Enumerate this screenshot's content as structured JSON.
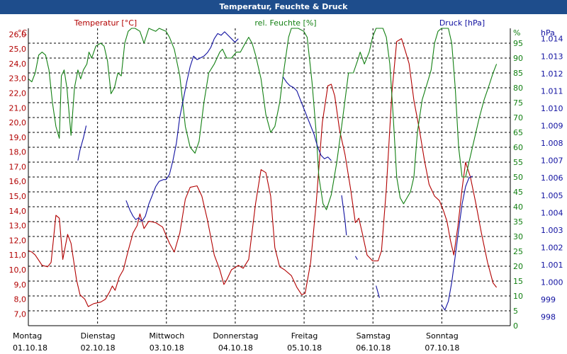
{
  "window": {
    "title": "Temperatur, Feuchte & Druck"
  },
  "colors": {
    "temperature": "#b20000",
    "humidity": "#138013",
    "pressure": "#1010a0",
    "title_bar": "#1e4d8c",
    "grid": "#000000",
    "text": "#000000"
  },
  "chart_data": {
    "type": "line",
    "title": "Temperatur, Feuchte & Druck",
    "grid": true,
    "x_axis": {
      "range": [
        0,
        7
      ],
      "unit": "days since Montag 01.10.18",
      "ticks": [
        {
          "day": "Montag",
          "date": "01.10.18"
        },
        {
          "day": "Dienstag",
          "date": "02.10.18"
        },
        {
          "day": "Mittwoch",
          "date": "03.10.18"
        },
        {
          "day": "Donnerstag",
          "date": "04.10.18"
        },
        {
          "day": "Freitag",
          "date": "05.10.18"
        },
        {
          "day": "Samstag",
          "date": "06.10.18"
        },
        {
          "day": "Sonntag",
          "date": "07.10.18"
        }
      ]
    },
    "y_axes": {
      "temperature": {
        "label": "Temperatur [°C]",
        "unit": "°C",
        "range": [
          6.2,
          26.4
        ],
        "ticks": [
          "7,0",
          "8,0",
          "9,0",
          "10,0",
          "11,0",
          "12,0",
          "13,0",
          "14,0",
          "15,0",
          "16,0",
          "17,0",
          "18,0",
          "19,0",
          "20,0",
          "21,0",
          "22,0",
          "23,0",
          "24,0",
          "25,0",
          "26,0"
        ]
      },
      "humidity": {
        "label": "rel. Feuchte [%]",
        "unit": "%",
        "range": [
          0,
          100
        ],
        "ticks": [
          "0",
          "5",
          "10",
          "15",
          "20",
          "25",
          "30",
          "35",
          "40",
          "45",
          "50",
          "55",
          "60",
          "65",
          "70",
          "75",
          "80",
          "85",
          "90",
          "95"
        ]
      },
      "pressure": {
        "label": "Druck [hPa]",
        "unit": "hPa",
        "range": [
          997.5,
          1014.6
        ],
        "ticks": [
          "998",
          "999",
          "1.000",
          "1.001",
          "1.002",
          "1.003",
          "1.004",
          "1.005",
          "1.006",
          "1.007",
          "1.008",
          "1.009",
          "1.010",
          "1.011",
          "1.012",
          "1.013",
          "1.014"
        ]
      }
    },
    "series": [
      {
        "name": "Temperatur [°C]",
        "axis": "temperature",
        "points": [
          [
            0,
            11.3
          ],
          [
            0.05,
            11.2
          ],
          [
            0.1,
            11.0
          ],
          [
            0.2,
            10.3
          ],
          [
            0.28,
            10.2
          ],
          [
            0.33,
            10.5
          ],
          [
            0.4,
            13.7
          ],
          [
            0.45,
            13.5
          ],
          [
            0.5,
            10.7
          ],
          [
            0.57,
            12.4
          ],
          [
            0.62,
            11.8
          ],
          [
            0.7,
            9.3
          ],
          [
            0.75,
            8.3
          ],
          [
            0.82,
            8.0
          ],
          [
            0.87,
            7.5
          ],
          [
            0.95,
            7.7
          ],
          [
            1.05,
            7.8
          ],
          [
            1.12,
            8.0
          ],
          [
            1.18,
            8.5
          ],
          [
            1.22,
            8.9
          ],
          [
            1.26,
            8.6
          ],
          [
            1.32,
            9.5
          ],
          [
            1.38,
            10.0
          ],
          [
            1.45,
            11.3
          ],
          [
            1.52,
            12.5
          ],
          [
            1.58,
            13.0
          ],
          [
            1.62,
            13.8
          ],
          [
            1.68,
            12.8
          ],
          [
            1.75,
            13.3
          ],
          [
            1.85,
            13.2
          ],
          [
            1.95,
            12.9
          ],
          [
            2.05,
            11.8
          ],
          [
            2.12,
            11.2
          ],
          [
            2.2,
            12.5
          ],
          [
            2.28,
            14.8
          ],
          [
            2.35,
            15.6
          ],
          [
            2.45,
            15.7
          ],
          [
            2.52,
            15.0
          ],
          [
            2.6,
            13.4
          ],
          [
            2.7,
            11.0
          ],
          [
            2.78,
            10.0
          ],
          [
            2.84,
            9.0
          ],
          [
            2.88,
            9.3
          ],
          [
            2.95,
            10.0
          ],
          [
            3.05,
            10.3
          ],
          [
            3.12,
            10.1
          ],
          [
            3.2,
            10.7
          ],
          [
            3.3,
            14.5
          ],
          [
            3.38,
            16.8
          ],
          [
            3.45,
            16.6
          ],
          [
            3.52,
            15.0
          ],
          [
            3.58,
            11.5
          ],
          [
            3.65,
            10.2
          ],
          [
            3.72,
            10.0
          ],
          [
            3.82,
            9.6
          ],
          [
            3.9,
            8.8
          ],
          [
            3.97,
            8.3
          ],
          [
            4.02,
            8.4
          ],
          [
            4.1,
            10.5
          ],
          [
            4.18,
            14.5
          ],
          [
            4.27,
            20.0
          ],
          [
            4.35,
            22.5
          ],
          [
            4.4,
            22.6
          ],
          [
            4.45,
            21.8
          ],
          [
            4.52,
            19.5
          ],
          [
            4.6,
            17.8
          ],
          [
            4.68,
            15.5
          ],
          [
            4.75,
            13.2
          ],
          [
            4.8,
            13.5
          ],
          [
            4.85,
            12.5
          ],
          [
            4.92,
            11.0
          ],
          [
            5.0,
            10.6
          ],
          [
            5.08,
            10.6
          ],
          [
            5.13,
            11.3
          ],
          [
            5.2,
            15.5
          ],
          [
            5.28,
            22.0
          ],
          [
            5.35,
            25.5
          ],
          [
            5.42,
            25.7
          ],
          [
            5.48,
            24.8
          ],
          [
            5.53,
            24.0
          ],
          [
            5.6,
            21.5
          ],
          [
            5.68,
            19.5
          ],
          [
            5.75,
            17.5
          ],
          [
            5.82,
            15.8
          ],
          [
            5.9,
            15.0
          ],
          [
            5.97,
            14.7
          ],
          [
            6.03,
            14.0
          ],
          [
            6.08,
            13.3
          ],
          [
            6.13,
            12.0
          ],
          [
            6.18,
            11.0
          ],
          [
            6.24,
            13.0
          ],
          [
            6.3,
            15.5
          ],
          [
            6.35,
            17.3
          ],
          [
            6.42,
            16.3
          ],
          [
            6.5,
            14.5
          ],
          [
            6.58,
            12.5
          ],
          [
            6.67,
            10.5
          ],
          [
            6.75,
            9.1
          ],
          [
            6.8,
            8.8
          ]
        ]
      },
      {
        "name": "rel. Feuchte [%]",
        "axis": "humidity",
        "points": [
          [
            0,
            83
          ],
          [
            0.05,
            82
          ],
          [
            0.1,
            85
          ],
          [
            0.15,
            91
          ],
          [
            0.2,
            92
          ],
          [
            0.25,
            91
          ],
          [
            0.3,
            86
          ],
          [
            0.35,
            75
          ],
          [
            0.4,
            67
          ],
          [
            0.45,
            63
          ],
          [
            0.48,
            84
          ],
          [
            0.52,
            86
          ],
          [
            0.56,
            80
          ],
          [
            0.62,
            64
          ],
          [
            0.67,
            80
          ],
          [
            0.72,
            86
          ],
          [
            0.76,
            83
          ],
          [
            0.8,
            86
          ],
          [
            0.85,
            88
          ],
          [
            0.88,
            92
          ],
          [
            0.92,
            90
          ],
          [
            0.98,
            94
          ],
          [
            1.05,
            95
          ],
          [
            1.1,
            94
          ],
          [
            1.15,
            89
          ],
          [
            1.2,
            78
          ],
          [
            1.25,
            80
          ],
          [
            1.3,
            85
          ],
          [
            1.35,
            84
          ],
          [
            1.4,
            95
          ],
          [
            1.45,
            99
          ],
          [
            1.5,
            100
          ],
          [
            1.55,
            100
          ],
          [
            1.62,
            99
          ],
          [
            1.68,
            95
          ],
          [
            1.75,
            100
          ],
          [
            1.85,
            99
          ],
          [
            1.9,
            100
          ],
          [
            2.0,
            99
          ],
          [
            2.05,
            97
          ],
          [
            2.12,
            93
          ],
          [
            2.2,
            84
          ],
          [
            2.28,
            67
          ],
          [
            2.35,
            60
          ],
          [
            2.42,
            58
          ],
          [
            2.48,
            62
          ],
          [
            2.55,
            75
          ],
          [
            2.62,
            85
          ],
          [
            2.7,
            88
          ],
          [
            2.78,
            92
          ],
          [
            2.82,
            93
          ],
          [
            2.88,
            90
          ],
          [
            2.95,
            90
          ],
          [
            3.02,
            92
          ],
          [
            3.08,
            92
          ],
          [
            3.15,
            95
          ],
          [
            3.2,
            97
          ],
          [
            3.25,
            95
          ],
          [
            3.3,
            91
          ],
          [
            3.38,
            83
          ],
          [
            3.45,
            71
          ],
          [
            3.52,
            65
          ],
          [
            3.58,
            67
          ],
          [
            3.65,
            75
          ],
          [
            3.7,
            84
          ],
          [
            3.78,
            97
          ],
          [
            3.82,
            100
          ],
          [
            3.92,
            100
          ],
          [
            4.0,
            99
          ],
          [
            4.05,
            97
          ],
          [
            4.12,
            82
          ],
          [
            4.18,
            65
          ],
          [
            4.22,
            50
          ],
          [
            4.28,
            41
          ],
          [
            4.33,
            39
          ],
          [
            4.4,
            44
          ],
          [
            4.48,
            55
          ],
          [
            4.55,
            67
          ],
          [
            4.6,
            76
          ],
          [
            4.65,
            85
          ],
          [
            4.72,
            85
          ],
          [
            4.78,
            89
          ],
          [
            4.82,
            92
          ],
          [
            4.88,
            88
          ],
          [
            4.95,
            92
          ],
          [
            5.0,
            97
          ],
          [
            5.05,
            100
          ],
          [
            5.15,
            100
          ],
          [
            5.2,
            97
          ],
          [
            5.25,
            88
          ],
          [
            5.3,
            70
          ],
          [
            5.35,
            50
          ],
          [
            5.4,
            43
          ],
          [
            5.45,
            41
          ],
          [
            5.55,
            45
          ],
          [
            5.6,
            50
          ],
          [
            5.65,
            65
          ],
          [
            5.72,
            76
          ],
          [
            5.8,
            82
          ],
          [
            5.85,
            86
          ],
          [
            5.9,
            95
          ],
          [
            5.95,
            99
          ],
          [
            6.0,
            100
          ],
          [
            6.1,
            100
          ],
          [
            6.15,
            95
          ],
          [
            6.2,
            80
          ],
          [
            6.25,
            60
          ],
          [
            6.3,
            50
          ],
          [
            6.35,
            50
          ],
          [
            6.45,
            60
          ],
          [
            6.55,
            70
          ],
          [
            6.62,
            76
          ],
          [
            6.68,
            80
          ],
          [
            6.75,
            85
          ],
          [
            6.8,
            88
          ]
        ]
      },
      {
        "name": "Druck [hPa]",
        "axis": "pressure",
        "points": [
          [
            0.72,
            1007.0
          ],
          [
            0.75,
            1007.6
          ],
          [
            0.8,
            1008.3
          ],
          [
            0.84,
            1009.0
          ],
          null,
          [
            1.42,
            1004.7
          ],
          [
            1.48,
            1004.1
          ],
          [
            1.52,
            1003.8
          ],
          [
            1.56,
            1003.6
          ],
          [
            1.6,
            1003.7
          ],
          [
            1.65,
            1003.5
          ],
          [
            1.7,
            1003.8
          ],
          [
            1.75,
            1004.5
          ],
          [
            1.8,
            1005.0
          ],
          [
            1.85,
            1005.5
          ],
          [
            1.9,
            1005.8
          ],
          [
            1.96,
            1005.9
          ],
          [
            2.0,
            1005.9
          ],
          [
            2.05,
            1006.2
          ],
          [
            2.1,
            1007.0
          ],
          [
            2.15,
            1008.0
          ],
          [
            2.2,
            1009.5
          ],
          [
            2.25,
            1010.5
          ],
          [
            2.3,
            1011.5
          ],
          [
            2.35,
            1012.4
          ],
          [
            2.4,
            1013.0
          ],
          [
            2.45,
            1012.8
          ],
          [
            2.5,
            1012.9
          ],
          [
            2.55,
            1013.0
          ],
          [
            2.6,
            1013.2
          ],
          [
            2.65,
            1013.5
          ],
          [
            2.7,
            1014.0
          ],
          [
            2.75,
            1014.3
          ],
          [
            2.8,
            1014.2
          ],
          [
            2.85,
            1014.4
          ],
          [
            2.9,
            1014.2
          ],
          [
            2.95,
            1014.0
          ],
          [
            3.0,
            1013.8
          ],
          [
            3.05,
            1014.0
          ],
          null,
          [
            3.7,
            1011.8
          ],
          [
            3.75,
            1011.5
          ],
          [
            3.8,
            1011.3
          ],
          [
            3.85,
            1011.2
          ],
          [
            3.9,
            1011.0
          ],
          [
            3.95,
            1010.5
          ],
          [
            4.0,
            1010.0
          ],
          [
            4.05,
            1009.5
          ],
          [
            4.1,
            1009.0
          ],
          [
            4.15,
            1008.5
          ],
          [
            4.2,
            1007.8
          ],
          [
            4.25,
            1007.3
          ],
          [
            4.3,
            1007.1
          ],
          [
            4.35,
            1007.2
          ],
          [
            4.4,
            1007.0
          ],
          null,
          [
            4.55,
            1005.0
          ],
          [
            4.6,
            1003.5
          ],
          [
            4.62,
            1002.7
          ],
          null,
          [
            4.75,
            1001.5
          ],
          [
            4.78,
            1001.3
          ],
          null,
          [
            5.05,
            999.8
          ],
          [
            5.1,
            999.1
          ],
          null,
          [
            6.0,
            998.7
          ],
          [
            6.05,
            998.4
          ],
          [
            6.1,
            998.9
          ],
          [
            6.15,
            1000.0
          ],
          [
            6.2,
            1001.5
          ],
          [
            6.25,
            1003.0
          ],
          [
            6.3,
            1004.5
          ],
          [
            6.35,
            1005.5
          ],
          [
            6.4,
            1006.0
          ],
          [
            6.45,
            1006.1
          ]
        ]
      }
    ]
  }
}
